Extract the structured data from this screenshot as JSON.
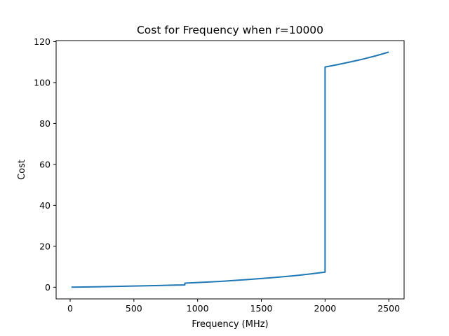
{
  "chart_data": {
    "type": "line",
    "title": "Cost for Frequency when r=10000",
    "xlabel": "Frequency (MHz)",
    "ylabel": "Cost",
    "xlim": [
      -110,
      2620
    ],
    "ylim": [
      -5.7,
      120.5
    ],
    "xticks": [
      0,
      500,
      1000,
      1500,
      2000,
      2500
    ],
    "yticks": [
      0,
      20,
      40,
      60,
      80,
      100,
      120
    ],
    "grid": false,
    "color": "#1f77b4",
    "series": [
      {
        "x": [
          10,
          100,
          200,
          300,
          400,
          500,
          600,
          700,
          800,
          900,
          900,
          1000,
          1100,
          1200,
          1300,
          1400,
          1500,
          1600,
          1700,
          1800,
          1900,
          2000,
          2000,
          2100,
          2200,
          2300,
          2400,
          2500
        ],
        "y": [
          0.05,
          0.12,
          0.22,
          0.33,
          0.45,
          0.58,
          0.72,
          0.86,
          1.0,
          1.15,
          2.0,
          2.3,
          2.6,
          2.95,
          3.35,
          3.8,
          4.25,
          4.75,
          5.3,
          5.9,
          6.6,
          7.4,
          107.6,
          108.8,
          110.1,
          111.5,
          113.1,
          114.9
        ]
      }
    ]
  }
}
